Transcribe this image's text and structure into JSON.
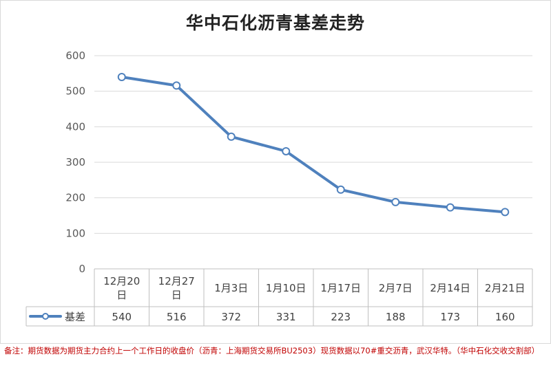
{
  "title": "华中石化沥青基差走势",
  "chart_data": {
    "type": "line",
    "categories": [
      [
        "12月20",
        "日"
      ],
      [
        "12月27",
        "日"
      ],
      [
        "1月3日"
      ],
      [
        "1月10日"
      ],
      [
        "1月17日"
      ],
      [
        "2月7日"
      ],
      [
        "2月14日"
      ],
      [
        "2月21日"
      ]
    ],
    "series": [
      {
        "name": "基差",
        "color": "#4f81bd",
        "values": [
          540,
          516,
          372,
          331,
          223,
          188,
          173,
          160
        ]
      }
    ],
    "yticks": [
      0,
      100,
      200,
      300,
      400,
      500,
      600
    ],
    "ylim": [
      0,
      600
    ],
    "grid": true,
    "data_table": true
  },
  "note": "备注：期货数据为期货主力合约上一个工作日的收盘价（沥青：上海期货交易所BU2503）现货数据以70#重交沥青，武汉华特。（华中石化交收交割部）"
}
